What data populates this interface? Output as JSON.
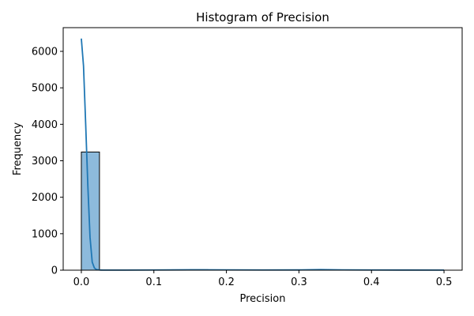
{
  "chart_data": {
    "type": "bar",
    "title": "Histogram of Precision",
    "xlabel": "Precision",
    "ylabel": "Frequency",
    "xlim": [
      -0.025,
      0.525
    ],
    "ylim": [
      0,
      6650
    ],
    "x_ticks": [
      0.0,
      0.1,
      0.2,
      0.3,
      0.4,
      0.5
    ],
    "x_tick_labels": [
      "0.0",
      "0.1",
      "0.2",
      "0.3",
      "0.4",
      "0.5"
    ],
    "y_ticks": [
      0,
      1000,
      2000,
      3000,
      4000,
      5000,
      6000
    ],
    "y_tick_labels": [
      "0",
      "1000",
      "2000",
      "3000",
      "4000",
      "5000",
      "6000"
    ],
    "bins": {
      "edges": [
        0.0,
        0.025,
        0.05,
        0.075,
        0.1,
        0.125,
        0.15,
        0.175,
        0.2,
        0.225,
        0.25,
        0.275,
        0.3,
        0.325,
        0.35,
        0.375,
        0.4,
        0.425,
        0.45,
        0.475,
        0.5
      ],
      "counts": [
        3240,
        3,
        5,
        8,
        15,
        18,
        20,
        14,
        10,
        12,
        8,
        10,
        7,
        15,
        12,
        6,
        5,
        4,
        3,
        3
      ]
    },
    "kde": {
      "x": [
        0.0,
        0.003,
        0.006,
        0.009,
        0.012,
        0.015,
        0.018,
        0.021,
        0.025,
        0.03,
        0.04,
        0.06,
        0.1,
        0.15,
        0.2,
        0.25,
        0.3,
        0.33,
        0.36,
        0.4,
        0.45,
        0.5
      ],
      "y": [
        6350,
        5600,
        4000,
        2300,
        900,
        220,
        60,
        15,
        5,
        3,
        2,
        2,
        5,
        10,
        8,
        6,
        7,
        15,
        8,
        5,
        4,
        3
      ]
    },
    "grid": false,
    "legend": "none",
    "colors": {
      "bar_fill": "#8dbadc",
      "bar_edge": "#000000",
      "kde_line": "#1f77b4"
    }
  }
}
